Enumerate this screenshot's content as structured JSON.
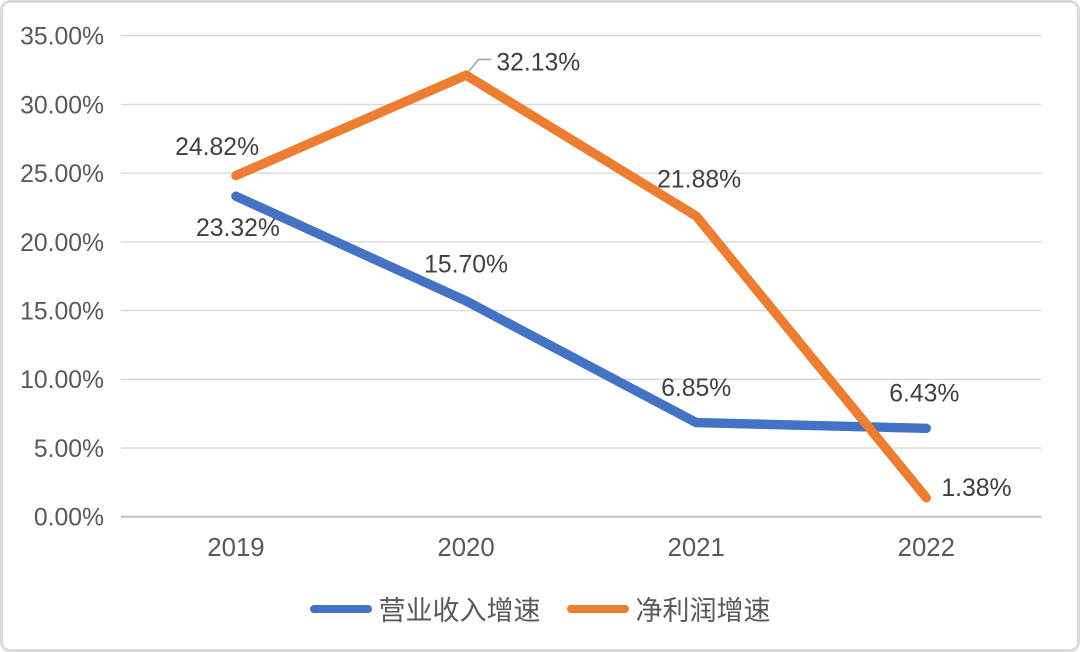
{
  "chart_data": {
    "type": "line",
    "categories": [
      "2019",
      "2020",
      "2021",
      "2022"
    ],
    "series": [
      {
        "name": "营业收入增速",
        "color": "#4472C4",
        "values": [
          23.32,
          15.7,
          6.85,
          6.43
        ],
        "labels": [
          "23.32%",
          "15.70%",
          "6.85%",
          "6.43%"
        ]
      },
      {
        "name": "净利润增速",
        "color": "#ED7D31",
        "values": [
          24.82,
          32.13,
          21.88,
          1.38
        ],
        "labels": [
          "24.82%",
          "32.13%",
          "21.88%",
          "1.38%"
        ]
      }
    ],
    "title": "",
    "xlabel": "",
    "ylabel": "",
    "ylim": [
      0,
      35
    ],
    "y_tick_step": 5,
    "y_tick_labels": [
      "0.00%",
      "5.00%",
      "10.00%",
      "15.00%",
      "20.00%",
      "25.00%",
      "30.00%",
      "35.00%"
    ],
    "grid": true,
    "legend_position": "bottom"
  },
  "colors": {
    "grid": "#D9D9D9",
    "axis": "#BFBFBF",
    "tick_text": "#595959",
    "data_label_text": "#404040",
    "leader_line": "#A6A6A6",
    "border": "#DBDBDB",
    "background": "#FFFFFF"
  }
}
